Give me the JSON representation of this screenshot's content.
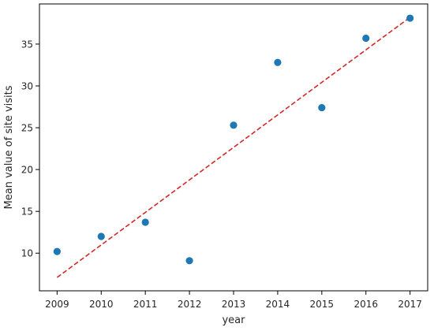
{
  "chart_data": {
    "type": "scatter",
    "title": "",
    "xlabel": "year",
    "ylabel": "Mean value of site visits",
    "xlim": [
      2008.6,
      2017.4
    ],
    "ylim": [
      5.5,
      39.8
    ],
    "x_ticks": [
      2009,
      2010,
      2011,
      2012,
      2013,
      2014,
      2015,
      2016,
      2017
    ],
    "y_ticks": [
      10,
      15,
      20,
      25,
      30,
      35
    ],
    "grid": false,
    "legend": "none",
    "series": [
      {
        "type": "scatter",
        "color": "#1f77b4",
        "points": [
          {
            "x": 2009,
            "y": 10.2
          },
          {
            "x": 2010,
            "y": 12.0
          },
          {
            "x": 2011,
            "y": 13.7
          },
          {
            "x": 2012,
            "y": 9.1
          },
          {
            "x": 2013,
            "y": 25.3
          },
          {
            "x": 2014,
            "y": 32.8
          },
          {
            "x": 2015,
            "y": 27.4
          },
          {
            "x": 2016,
            "y": 35.7
          },
          {
            "x": 2017,
            "y": 38.1
          }
        ]
      },
      {
        "type": "trend-line",
        "style": "dashed",
        "color": "#d62728",
        "points": [
          {
            "x": 2009,
            "y": 7.1
          },
          {
            "x": 2017,
            "y": 38.2
          }
        ]
      }
    ]
  }
}
